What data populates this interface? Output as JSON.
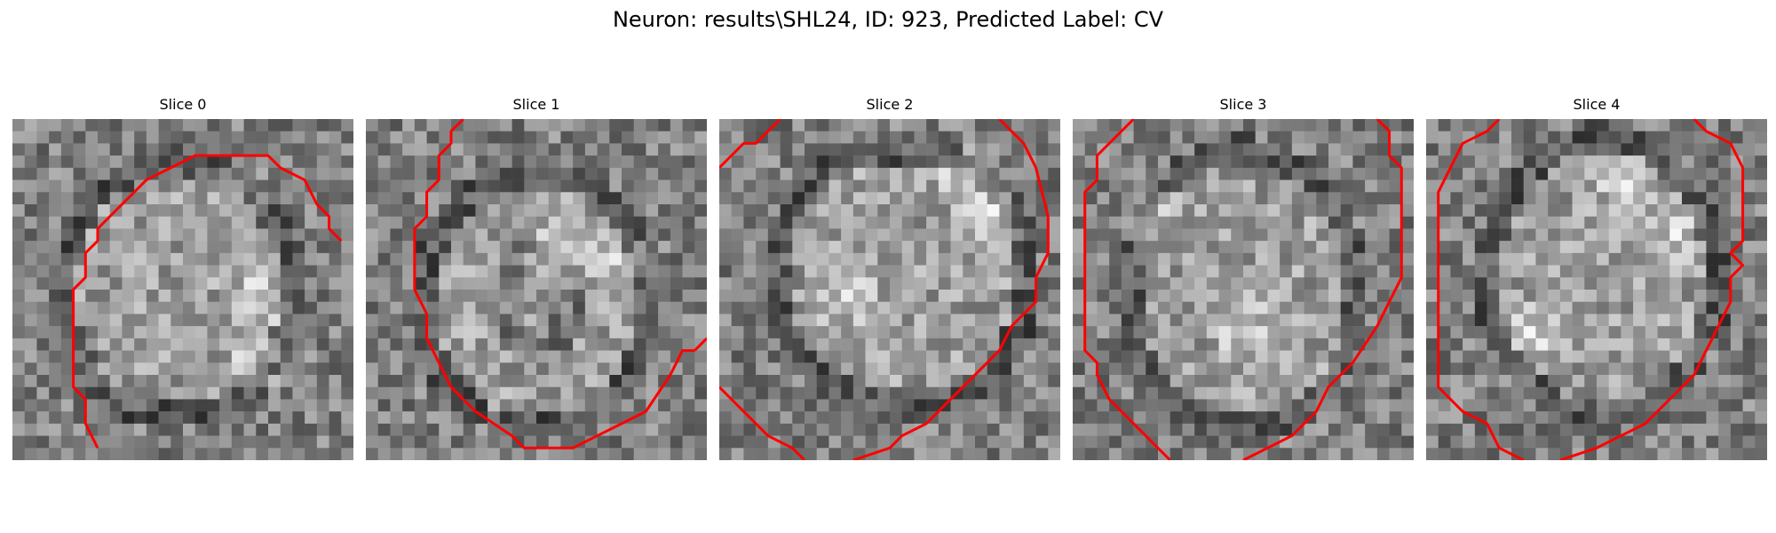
{
  "figure": {
    "title": "Neuron: results\\SHL24, ID: 923, Predicted Label: CV"
  },
  "panels": [
    {
      "title": "Slice 0",
      "contour_color": "#ff0000"
    },
    {
      "title": "Slice 1",
      "contour_color": "#ff0000"
    },
    {
      "title": "Slice 2",
      "contour_color": "#ff0000"
    },
    {
      "title": "Slice 3",
      "contour_color": "#ff0000"
    },
    {
      "title": "Slice 4",
      "contour_color": "#ff0000"
    }
  ],
  "image_style": {
    "colormap": "grayscale",
    "grid_size": 28
  }
}
